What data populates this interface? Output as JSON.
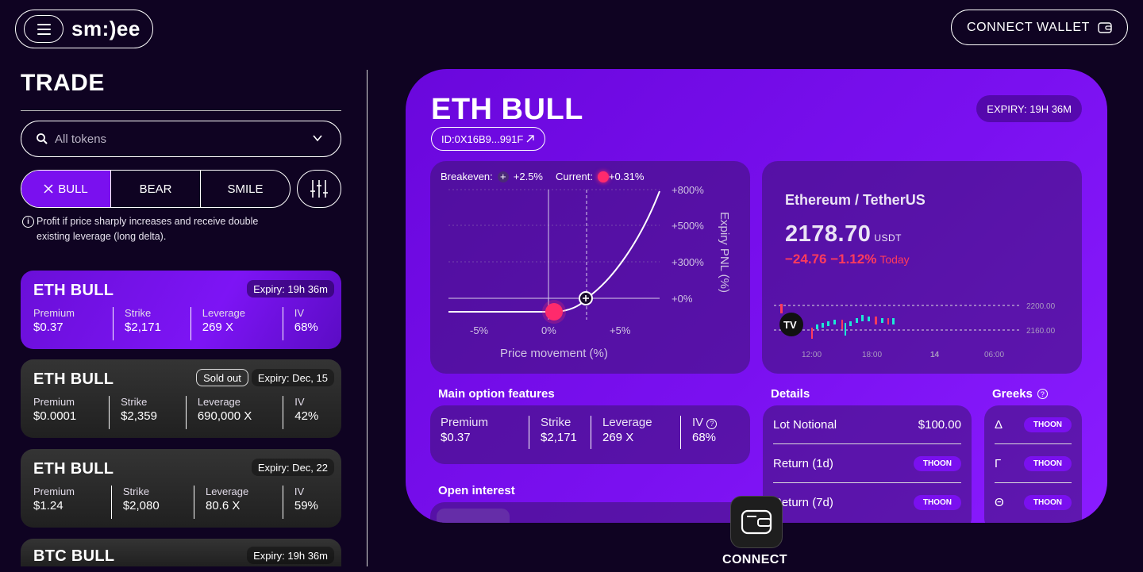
{
  "header": {
    "brand": "sm:)ee",
    "wallet_button": "CONNECT WALLET"
  },
  "sidebar": {
    "title": "TRADE",
    "token_select": {
      "value": "All tokens"
    },
    "tabs": [
      {
        "label": "BULL",
        "active": true
      },
      {
        "label": "BEAR",
        "active": false
      },
      {
        "label": "SMILE",
        "active": false
      }
    ],
    "info_text": "Profit if price sharply increases and receive double existing leverage (long delta).",
    "cards": [
      {
        "title": "ETH BULL",
        "sold_out": "",
        "expiry": "Expiry: 19h 36m",
        "stats": [
          {
            "k": "Premium",
            "v": "$0.37"
          },
          {
            "k": "Strike",
            "v": "$2,171"
          },
          {
            "k": "Leverage",
            "v": "269 X"
          },
          {
            "k": "IV",
            "v": "68%"
          }
        ]
      },
      {
        "title": "ETH BULL",
        "sold_out": "Sold out",
        "expiry": "Expiry: Dec, 15",
        "stats": [
          {
            "k": "Premium",
            "v": "$0.0001"
          },
          {
            "k": "Strike",
            "v": "$2,359"
          },
          {
            "k": "Leverage",
            "v": "690,000 X"
          },
          {
            "k": "IV",
            "v": "42%"
          }
        ]
      },
      {
        "title": "ETH BULL",
        "sold_out": "",
        "expiry": "Expiry: Dec, 22",
        "stats": [
          {
            "k": "Premium",
            "v": "$1.24"
          },
          {
            "k": "Strike",
            "v": "$2,080"
          },
          {
            "k": "Leverage",
            "v": "80.6 X"
          },
          {
            "k": "IV",
            "v": "59%"
          }
        ]
      },
      {
        "title": "BTC BULL",
        "sold_out": "",
        "expiry": "Expiry: 19h 36m",
        "stats": []
      }
    ]
  },
  "detail": {
    "title": "ETH BULL",
    "id": "ID:0X16B9...991F",
    "expiry": "EXPIRY: 19H 36M",
    "pnl_chart": {
      "breakeven_label": "Breakeven:",
      "breakeven_value": "+2.5%",
      "current_label": "Current:",
      "current_value": "+0.31%",
      "y_ticks": [
        "+800%",
        "+500%",
        "+300%",
        "+0%"
      ],
      "x_ticks": [
        "-5%",
        "0%",
        "+5%"
      ],
      "xlabel": "Price movement (%)",
      "ylabel": "Expiry PNL (%)"
    },
    "ticker": {
      "pair": "Ethereum / TetherUS",
      "price": "2178.70",
      "unit": "USDT",
      "change": "−24.76 −1.12%",
      "today": "Today",
      "y_ticks": [
        "2200.00",
        "2160.00"
      ],
      "x_ticks": [
        "12:00",
        "18:00",
        "14",
        "06:00"
      ]
    },
    "features_label": "Main option features",
    "features": [
      {
        "k": "Premium",
        "v": "$0.37"
      },
      {
        "k": "Strike",
        "v": "$2,171"
      },
      {
        "k": "Leverage",
        "v": "269 X"
      },
      {
        "k": "IV",
        "v": "68%"
      }
    ],
    "details_label": "Details",
    "details": [
      {
        "k": "Lot Notional",
        "v": "$100.00"
      },
      {
        "k": "Return (1d)",
        "v": "THOON"
      },
      {
        "k": "Return (7d)",
        "v": "THOON"
      }
    ],
    "greeks_label": "Greeks",
    "greeks": [
      {
        "k": "Δ",
        "v": "THOON"
      },
      {
        "k": "Γ",
        "v": "THOON"
      },
      {
        "k": "Θ",
        "v": "THOON"
      }
    ],
    "open_interest_label": "Open interest"
  },
  "fab": {
    "label": "CONNECT"
  },
  "colors": {
    "accent": "#7a10ef",
    "negative": "#ff3b5c",
    "marker": "#ff2a6d",
    "background": "#0f0322"
  }
}
